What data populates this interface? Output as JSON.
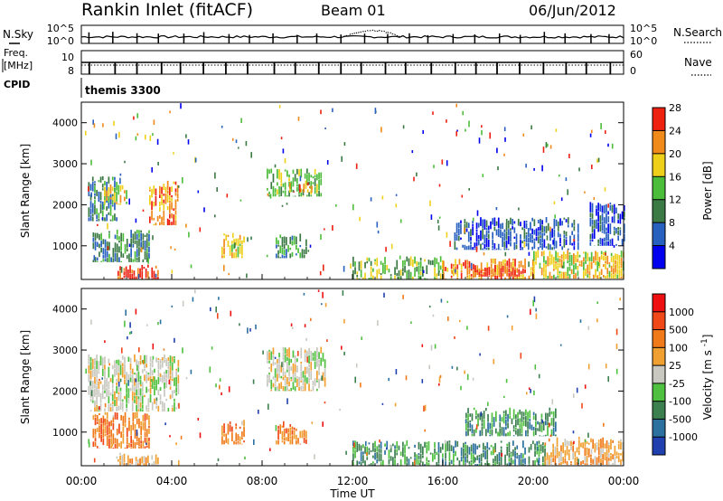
{
  "header": {
    "title": "Rankin Inlet (fitACF)",
    "beam": "Beam 01",
    "date": "06/Jun/2012"
  },
  "strip_nsky": {
    "label": "N.Sky",
    "ticks": [
      "10^5",
      "10^0"
    ],
    "right_ticks": [
      "10^5",
      "10^0"
    ],
    "right_label": "N.Search"
  },
  "strip_freq": {
    "label_line1": "Freq.",
    "label_line2": "[MHz]",
    "ticks": [
      "10",
      "8"
    ],
    "right_ticks": [
      "60",
      "0"
    ],
    "right_label": "Nave"
  },
  "cpid": {
    "label": "CPID",
    "value": "themis 3300"
  },
  "x_axis": {
    "label": "Time UT",
    "ticks": [
      "00:00",
      "04:00",
      "08:00",
      "12:00",
      "16:00",
      "20:00",
      "00:00"
    ]
  },
  "colors": {
    "power": [
      "#0000ee",
      "#2860c0",
      "#3b7a44",
      "#4cbd3a",
      "#eed01a",
      "#f08a1a",
      "#ee2010"
    ],
    "velocity": [
      "#ee1010",
      "#f04818",
      "#f07a1a",
      "#f0a030",
      "#c8c8c0",
      "#50c040",
      "#3c8050",
      "#2c70a0",
      "#2040b0"
    ]
  },
  "chart_data": [
    {
      "type": "heatmap",
      "title": "",
      "xlabel": "",
      "ylabel": "Slant Range [km]",
      "x_range_hours": [
        0,
        24
      ],
      "ylim": [
        180,
        4500
      ],
      "y_ticks": [
        "1000",
        "2000",
        "3000",
        "4000"
      ],
      "colorbar": {
        "label": "Power [dB]",
        "ticks": [
          "4",
          "8",
          "12",
          "16",
          "20",
          "24",
          "28"
        ]
      },
      "regions": [
        {
          "t": [
            0.3,
            1.6
          ],
          "r": [
            1600,
            2700
          ],
          "level": 2
        },
        {
          "t": [
            1.0,
            2.0
          ],
          "r": [
            2000,
            2500
          ],
          "level": 4
        },
        {
          "t": [
            3.0,
            4.3
          ],
          "r": [
            1500,
            2600
          ],
          "level": 5
        },
        {
          "t": [
            0.5,
            3.0
          ],
          "r": [
            600,
            1400
          ],
          "level": 2
        },
        {
          "t": [
            1.6,
            3.4
          ],
          "r": [
            180,
            550
          ],
          "level": 6
        },
        {
          "t": [
            6.2,
            7.2
          ],
          "r": [
            700,
            1300
          ],
          "level": 4
        },
        {
          "t": [
            8.2,
            10.6
          ],
          "r": [
            2200,
            2900
          ],
          "level": 3
        },
        {
          "t": [
            9.2,
            10.2
          ],
          "r": [
            2300,
            2600
          ],
          "level": 5
        },
        {
          "t": [
            8.6,
            10.0
          ],
          "r": [
            700,
            1300
          ],
          "level": 2
        },
        {
          "t": [
            12.0,
            16.0
          ],
          "r": [
            180,
            750
          ],
          "level": 3
        },
        {
          "t": [
            16.0,
            20.0
          ],
          "r": [
            180,
            700
          ],
          "level": 5
        },
        {
          "t": [
            17.4,
            19.5
          ],
          "r": [
            250,
            550
          ],
          "level": 6
        },
        {
          "t": [
            20.0,
            24.0
          ],
          "r": [
            200,
            900
          ],
          "level": 4
        },
        {
          "t": [
            16.5,
            22.0
          ],
          "r": [
            900,
            1700
          ],
          "level": 1
        },
        {
          "t": [
            22.5,
            24.0
          ],
          "r": [
            1000,
            2100
          ],
          "level": 1
        }
      ]
    },
    {
      "type": "heatmap",
      "title": "",
      "xlabel": "Time UT",
      "ylabel": "Slant Range [km]",
      "x_range_hours": [
        0,
        24
      ],
      "ylim": [
        180,
        4500
      ],
      "y_ticks": [
        "1000",
        "2000",
        "3000",
        "4000"
      ],
      "colorbar": {
        "label": "Velocity [m s^-1]",
        "ticks": [
          "1000",
          "500",
          "100",
          "25",
          "-25",
          "-100",
          "-500",
          "-1000"
        ]
      },
      "regions": [
        {
          "t": [
            0.3,
            4.3
          ],
          "r": [
            1500,
            2900
          ],
          "level": 4
        },
        {
          "t": [
            8.2,
            10.8
          ],
          "r": [
            2000,
            3100
          ],
          "level": 4
        },
        {
          "t": [
            0.5,
            3.0
          ],
          "r": [
            600,
            1500
          ],
          "level": 6
        },
        {
          "t": [
            6.2,
            7.2
          ],
          "r": [
            700,
            1300
          ],
          "level": 6
        },
        {
          "t": [
            8.6,
            10.0
          ],
          "r": [
            700,
            1200
          ],
          "level": 6
        },
        {
          "t": [
            1.6,
            3.4
          ],
          "r": [
            180,
            500
          ],
          "level": 5
        },
        {
          "t": [
            12.0,
            16.0
          ],
          "r": [
            180,
            800
          ],
          "level": 2
        },
        {
          "t": [
            16.0,
            20.5
          ],
          "r": [
            180,
            800
          ],
          "level": 2
        },
        {
          "t": [
            17.0,
            21.0
          ],
          "r": [
            900,
            1600
          ],
          "level": 2
        },
        {
          "t": [
            20.5,
            24.0
          ],
          "r": [
            200,
            900
          ],
          "level": 5
        }
      ]
    }
  ]
}
